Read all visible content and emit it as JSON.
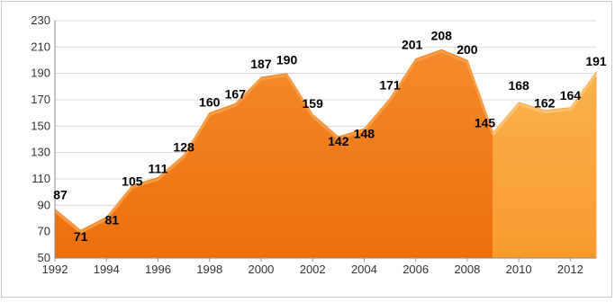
{
  "chart_data": {
    "type": "area",
    "title": "",
    "xlabel": "",
    "ylabel": "",
    "x": [
      1992,
      1993,
      1994,
      1995,
      1996,
      1997,
      1998,
      1999,
      2000,
      2001,
      2002,
      2003,
      2004,
      2005,
      2006,
      2007,
      2008,
      2009,
      2010,
      2011,
      2012,
      2013
    ],
    "values": [
      87,
      71,
      81,
      105,
      111,
      128,
      160,
      167,
      187,
      190,
      159,
      142,
      148,
      171,
      201,
      208,
      200,
      145,
      168,
      162,
      164,
      191
    ],
    "xlim": [
      1992,
      2013
    ],
    "ylim": [
      50,
      230
    ],
    "x_ticks": [
      "1992",
      "1994",
      "1996",
      "1998",
      "2000",
      "2002",
      "2004",
      "2006",
      "2008",
      "2010",
      "2012"
    ],
    "y_ticks": [
      "50",
      "70",
      "90",
      "110",
      "130",
      "150",
      "170",
      "190",
      "210",
      "230"
    ],
    "grid": "horizontal",
    "legend": "none",
    "segments": [
      {
        "from": 1992,
        "to": 2009,
        "color": "#f07c1a"
      },
      {
        "from": 2009,
        "to": 2013,
        "color": "#f9a43b"
      }
    ]
  }
}
